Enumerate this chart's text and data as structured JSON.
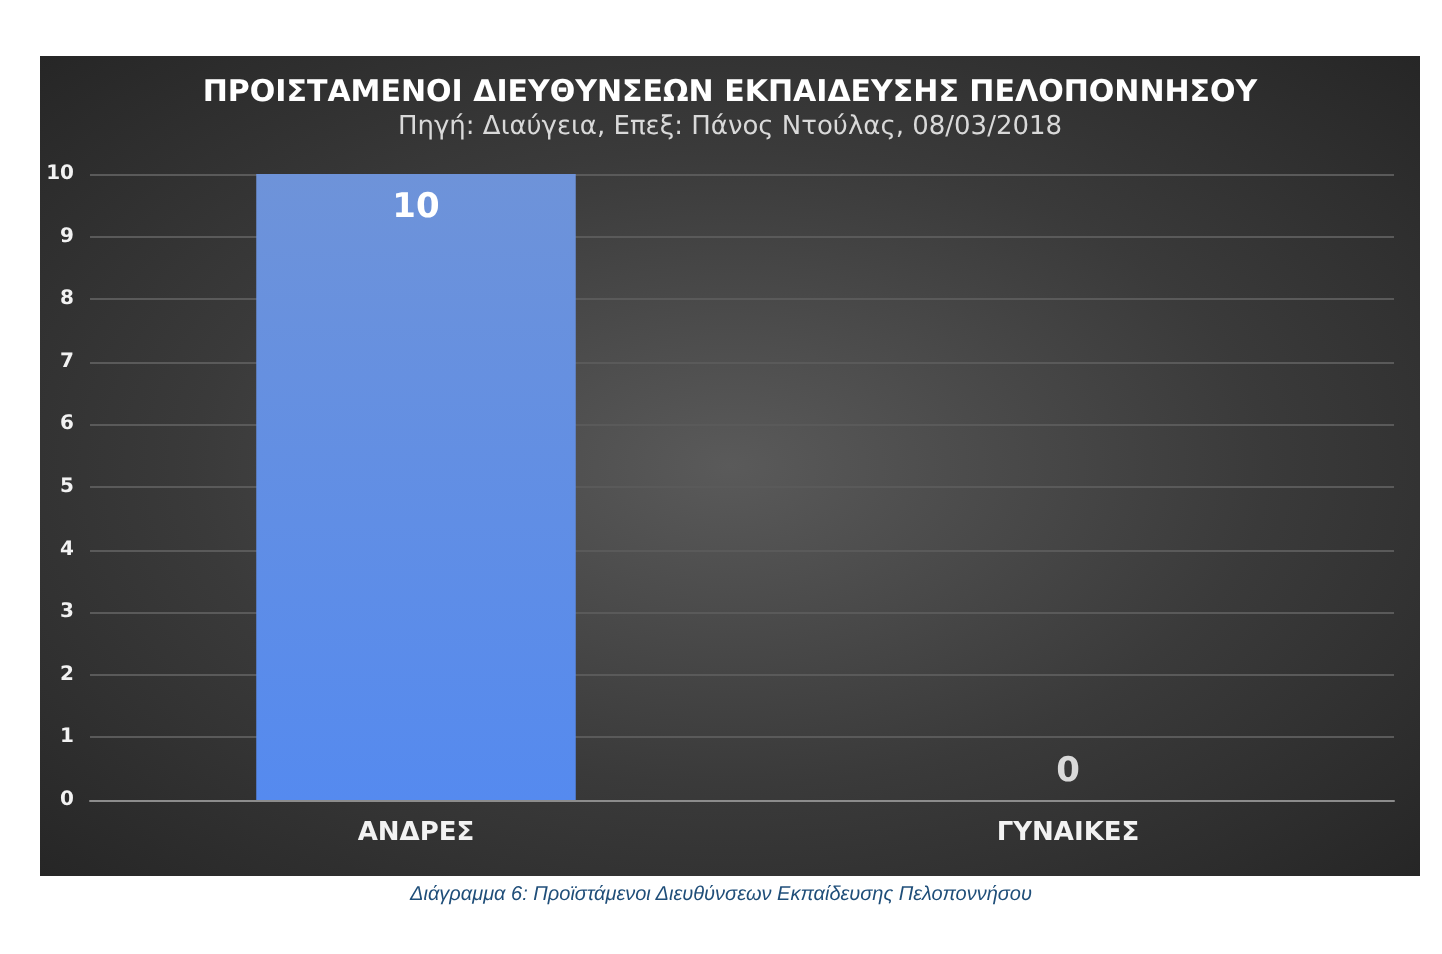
{
  "chart_data": {
    "type": "bar",
    "title": "ΠΡΟΙΣΤΑΜΕΝΟΙ ΔΙΕΥΘΥΝΣΕΩΝ ΕΚΠΑΙΔΕΥΣΗΣ ΠΕΛΟΠΟΝΝΗΣΟΥ",
    "subtitle": "Πηγή: Διαύγεια, Επεξ: Πάνος Ντούλας, 08/03/2018",
    "categories": [
      "ΑΝΔΡΕΣ",
      "ΓΥΝΑΙΚΕΣ"
    ],
    "values": [
      10,
      0
    ],
    "color": "#4a78d0",
    "ylim": [
      0,
      10
    ],
    "yticks": [
      0,
      1,
      2,
      3,
      4,
      5,
      6,
      7,
      8,
      9,
      10
    ],
    "grid": "y",
    "data_labels": true,
    "annotations": [
      "Διάγραμμα 6: Προϊστάμενοι Διευθύνσεων Εκπαίδευσης Πελοποννήσου"
    ]
  }
}
